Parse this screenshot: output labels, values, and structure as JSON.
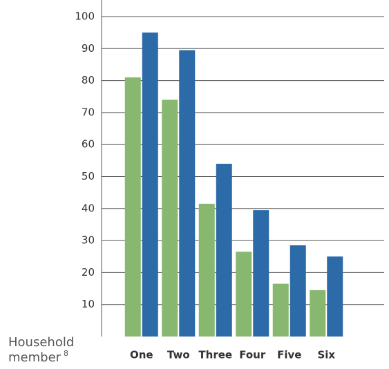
{
  "chart_data": {
    "type": "bar",
    "categories": [
      "One",
      "Two",
      "Three",
      "Four",
      "Five",
      "Six"
    ],
    "series": [
      {
        "color": "#88b86f",
        "values": [
          81,
          74,
          41.5,
          26.5,
          16.5,
          14.5
        ]
      },
      {
        "color": "#2d6aa8",
        "values": [
          95,
          89.5,
          54,
          39.5,
          28.5,
          25
        ]
      }
    ],
    "ylim": [
      0,
      100
    ],
    "yticks": [
      10,
      20,
      30,
      40,
      50,
      60,
      70,
      80,
      90,
      100
    ],
    "grid": true,
    "x_label": "Household",
    "x_label_line2": "member",
    "x_label_sup": "8"
  }
}
